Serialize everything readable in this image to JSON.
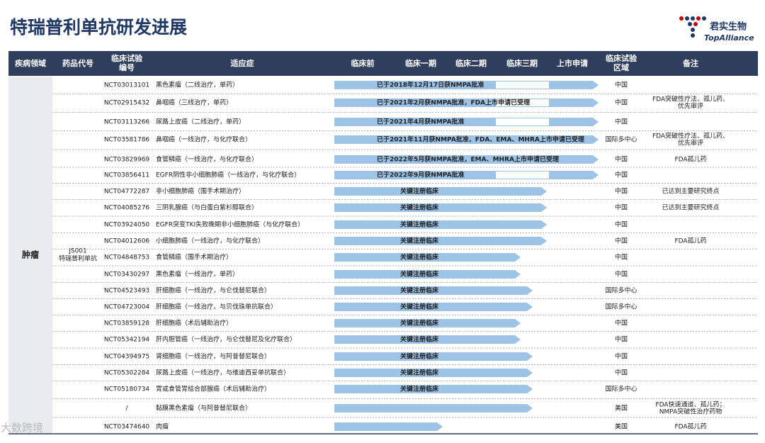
{
  "header": {
    "title": "特瑞普利单抗研发进展",
    "logo_cn": "君实生物",
    "logo_en": "TopAlliance"
  },
  "columns": [
    "疾病领域",
    "药品代号",
    [
      "临床试验",
      "编号"
    ],
    "适应症",
    "临床前",
    "临床一期",
    "临床二期",
    "临床三期",
    "上市申请",
    [
      "临床试验",
      "区域"
    ],
    "备注"
  ],
  "disease": "肿瘤",
  "drug": [
    "JS001",
    "特瑞普利单抗"
  ],
  "rows": [
    {
      "id": "NCT03013101",
      "indication": "黑色素瘤（二线治疗，单药）",
      "bar": "已于2018年12月17日获NMPA批准",
      "region": "中国",
      "note": []
    },
    {
      "id": "NCT02915432",
      "indication": "鼻咽癌（三线治疗，单药）",
      "bar": "已于2021年2月获NMPA批准，FDA上市申请已受理",
      "region": "中国",
      "note": [
        "FDA突破性疗法、孤儿药、",
        "优先审评"
      ]
    },
    {
      "id": "NCT03113266",
      "indication": "尿路上皮癌（二线治疗，单药）",
      "bar": "已于2021年4月获NMPA批准",
      "region": "中国",
      "note": []
    },
    {
      "id": "NCT03581786",
      "indication": "鼻咽癌（一线治疗，与化疗联合）",
      "bar": "已于2021年11月获NMPA批准，FDA、EMA、MHRA上市申请已受理",
      "region": "国际多中心",
      "note": [
        "FDA突破性疗法、孤儿药、",
        "优先审评"
      ]
    },
    {
      "id": "NCT03829969",
      "indication": "食管鳞癌（一线治疗，与化疗联合）",
      "bar": "已于2022年5月获NMPA批准，EMA、MHRA上市申请已受理",
      "region": "中国",
      "note": [
        "FDA孤儿药"
      ]
    },
    {
      "id": "NCT03856411",
      "indication": "EGFR阴性非小细胞肺癌（一线治疗，与化疗联合）",
      "bar": "已于2022年9月获NMPA批准",
      "region": "中国",
      "note": []
    },
    {
      "id": "NCT04772287",
      "indication": "非小细胞肺癌（围手术期治疗）",
      "bar": "关键注册临床",
      "region": "中国",
      "note": [
        "已达到主要研究终点"
      ]
    },
    {
      "id": "NCT04085276",
      "indication": "三阴乳腺癌（与白蛋白紫杉醇联合）",
      "bar": "关键注册临床",
      "region": "中国",
      "note": [
        "已达到主要研究终点"
      ]
    },
    {
      "id": "NCT03924050",
      "indication": "EGFR突变TKI失败晚期非小细胞肺癌（与化疗联合）",
      "bar": "关键注册临床",
      "region": "中国",
      "note": []
    },
    {
      "id": "NCT04012606",
      "indication": "小细胞肺癌（一线治疗，与化疗联合）",
      "bar": "关键注册临床",
      "region": "中国",
      "note": [
        "FDA孤儿药"
      ]
    },
    {
      "id": "NCT04848753",
      "indication": "食管鳞癌（围手术期治疗）",
      "bar": "关键注册临床",
      "region": "中国",
      "note": []
    },
    {
      "id": "NCT03430297",
      "indication": "黑色素瘤（一线治疗，单药）",
      "bar": "关键注册临床",
      "region": "中国",
      "note": []
    },
    {
      "id": "NCT04523493",
      "indication": "肝细胞癌（一线治疗，与仑伐替尼联合）",
      "bar": "关键注册临床",
      "region": "国际多中心",
      "note": []
    },
    {
      "id": "NCT04723004",
      "indication": "肝细胞癌（一线治疗，与贝伐珠单抗联合）",
      "bar": "关键注册临床",
      "region": "国际多中心",
      "note": []
    },
    {
      "id": "NCT03859128",
      "indication": "肝细胞癌（术后辅助治疗）",
      "bar": "关键注册临床",
      "region": "中国",
      "note": []
    },
    {
      "id": "NCT05342194",
      "indication": "肝内胆管癌（一线治疗，与仑伐替尼及化疗联合）",
      "bar": "关键注册临床",
      "region": "中国",
      "note": []
    },
    {
      "id": "NCT04394975",
      "indication": "肾细胞癌（一线治疗，与阿昔替尼联合）",
      "bar": "关键注册临床",
      "region": "中国",
      "note": []
    },
    {
      "id": "NCT05302284",
      "indication": "尿路上皮癌（一线治疗，与维迪西妥单抗联合）",
      "bar": "关键注册临床",
      "region": "中国",
      "note": []
    },
    {
      "id": "NCT05180734",
      "indication": "胃或食管胃结合部腺癌（术后辅助治疗）",
      "bar": "关键注册临床",
      "region": "国际多中心",
      "note": []
    },
    {
      "id": "/",
      "indication": "黏膜黑色素瘤（与阿昔替尼联合）",
      "region": "美国",
      "note": [
        "FDA快速通道、孤儿药；",
        "NMPA突破性治疗药物"
      ]
    },
    {
      "id": "NCT03474640",
      "indication": "肉瘤",
      "region": "美国",
      "note": [
        "FDA孤儿药"
      ]
    }
  ],
  "watermark": "大数跨境"
}
